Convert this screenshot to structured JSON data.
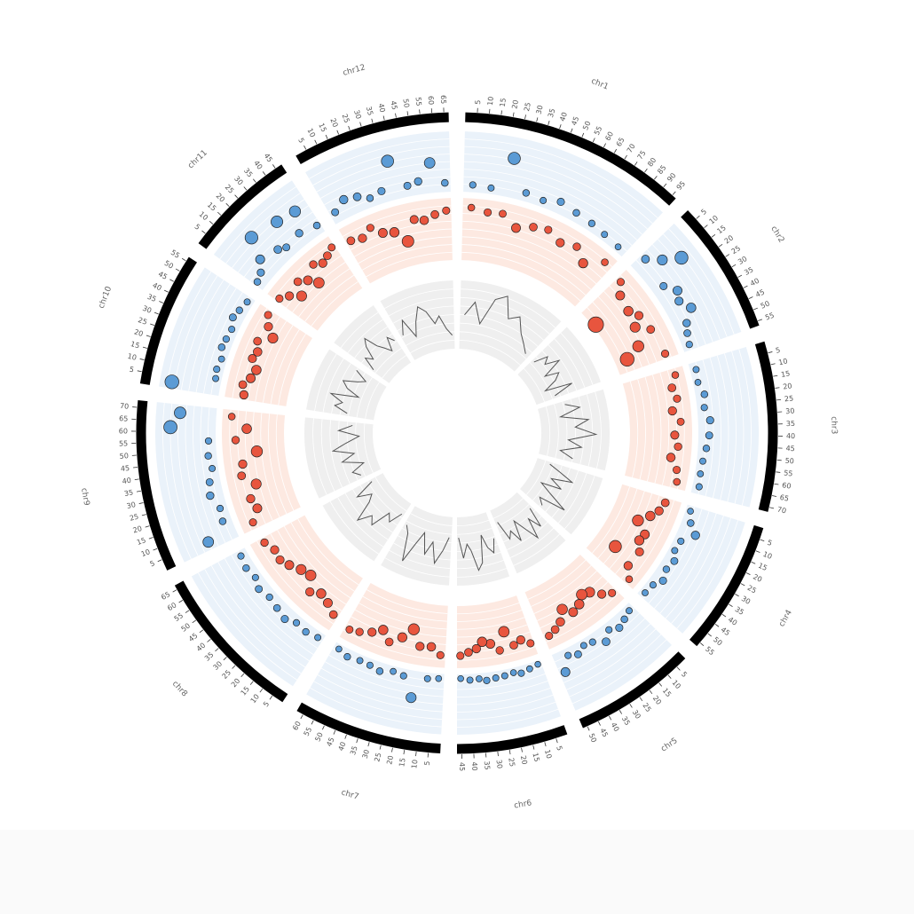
{
  "chart_data": {
    "type": "circos",
    "chromosomes": [
      {
        "name": "chr1",
        "length": 97,
        "ticks": [
          5,
          10,
          15,
          20,
          25,
          30,
          35,
          40,
          45,
          50,
          55,
          60,
          65,
          70,
          75,
          80,
          85,
          90,
          95
        ],
        "positions": [
          5,
          15,
          24,
          34,
          44,
          53,
          63,
          73,
          82,
          92
        ]
      },
      {
        "name": "chr2",
        "length": 57,
        "ticks": [
          5,
          10,
          15,
          20,
          25,
          30,
          35,
          40,
          45,
          50,
          55
        ],
        "positions": [
          3,
          9,
          14,
          20,
          26,
          31,
          37,
          43,
          48,
          54
        ]
      },
      {
        "name": "chr3",
        "length": 72,
        "ticks": [
          5,
          10,
          15,
          20,
          25,
          30,
          35,
          40,
          45,
          50,
          55,
          60,
          65,
          70
        ],
        "positions": [
          4,
          11,
          18,
          25,
          32,
          40,
          47,
          54,
          61,
          68
        ]
      },
      {
        "name": "chr4",
        "length": 57,
        "ticks": [
          5,
          10,
          15,
          20,
          25,
          30,
          35,
          40,
          45,
          50,
          55
        ],
        "positions": [
          3,
          9,
          14,
          20,
          26,
          31,
          37,
          43,
          48,
          54
        ]
      },
      {
        "name": "chr5",
        "length": 52,
        "ticks": [
          5,
          10,
          15,
          20,
          25,
          30,
          35,
          40,
          45,
          50
        ],
        "positions": [
          3,
          8,
          13,
          18,
          23,
          29,
          34,
          39,
          44,
          49
        ]
      },
      {
        "name": "chr6",
        "length": 47,
        "ticks": [
          5,
          10,
          15,
          20,
          25,
          30,
          35,
          40,
          45
        ],
        "positions": [
          2,
          7,
          12,
          16,
          21,
          26,
          31,
          35,
          40,
          45
        ]
      },
      {
        "name": "chr7",
        "length": 63,
        "ticks": [
          5,
          10,
          15,
          20,
          25,
          30,
          35,
          40,
          45,
          50,
          55,
          60
        ],
        "positions": [
          3,
          9,
          16,
          22,
          28,
          35,
          41,
          47,
          54,
          60
        ]
      },
      {
        "name": "chr8",
        "length": 67,
        "ticks": [
          5,
          10,
          15,
          20,
          25,
          30,
          35,
          40,
          45,
          50,
          55,
          60,
          65
        ],
        "positions": [
          3,
          10,
          17,
          23,
          30,
          37,
          44,
          50,
          57,
          64
        ]
      },
      {
        "name": "chr9",
        "length": 73,
        "ticks": [
          5,
          10,
          15,
          20,
          25,
          30,
          35,
          40,
          45,
          50,
          55,
          60,
          65,
          70
        ],
        "positions": [
          4,
          11,
          18,
          26,
          33,
          40,
          47,
          55,
          62,
          69
        ]
      },
      {
        "name": "chr10",
        "length": 57,
        "ticks": [
          5,
          10,
          15,
          20,
          25,
          30,
          35,
          40,
          45,
          50,
          55
        ],
        "positions": [
          3,
          9,
          14,
          20,
          26,
          31,
          37,
          43,
          48,
          54
        ]
      },
      {
        "name": "chr11",
        "length": 48,
        "ticks": [
          5,
          10,
          15,
          20,
          25,
          30,
          35,
          40,
          45
        ],
        "positions": [
          2,
          7,
          12,
          17,
          22,
          26,
          31,
          36,
          41,
          46
        ]
      },
      {
        "name": "chr12",
        "length": 67,
        "ticks": [
          5,
          10,
          15,
          20,
          25,
          30,
          35,
          40,
          45,
          50,
          55,
          60,
          65
        ],
        "positions": [
          3,
          10,
          17,
          23,
          30,
          37,
          44,
          50,
          57,
          64
        ]
      }
    ],
    "tracks": [
      {
        "type": "scatter",
        "color": "#5b9bd5",
        "background": "#eaf2fa",
        "ylim": [
          0,
          10
        ],
        "direction": "out",
        "grid": true,
        "values": [
          [
            1.2,
            1.0,
            6.5,
            1.4,
            1.1,
            2.0,
            1.5,
            1.3,
            1.0,
            0.8
          ],
          [
            2.5,
            4.5,
            7.2,
            2.0,
            3.5,
            2.8,
            4.0,
            2.2,
            1.6,
            1.2
          ],
          [
            1.0,
            0.8,
            1.5,
            1.2,
            2.0,
            1.8,
            1.4,
            1.0,
            0.9,
            1.1
          ],
          [
            0.8,
            1.5,
            3.0,
            1.2,
            1.0,
            1.8,
            1.4,
            2.0,
            1.1,
            0.9
          ],
          [
            1.0,
            1.5,
            2.0,
            1.2,
            2.5,
            1.3,
            1.0,
            1.8,
            1.2,
            3.5
          ],
          [
            0.6,
            0.9,
            1.2,
            0.8,
            1.0,
            1.1,
            1.3,
            0.9,
            1.0,
            0.7
          ],
          [
            0.8,
            1.0,
            4.5,
            1.2,
            0.9,
            1.5,
            1.1,
            1.0,
            1.3,
            0.8
          ],
          [
            1.0,
            1.4,
            1.2,
            2.0,
            1.6,
            1.3,
            1.8,
            1.1,
            1.5,
            1.2
          ],
          [
            5.0,
            1.5,
            1.2,
            2.2,
            1.8,
            1.0,
            1.4,
            1.2,
            7.5,
            6.0
          ],
          [
            8.0,
            1.0,
            1.2,
            0.9,
            1.5,
            1.3,
            1.1,
            1.8,
            1.4,
            1.0
          ],
          [
            1.5,
            2.0,
            3.5,
            7.0,
            2.5,
            1.8,
            6.0,
            2.2,
            5.5,
            1.5
          ],
          [
            1.8,
            3.0,
            2.5,
            1.5,
            2.0,
            6.5,
            1.8,
            2.2,
            5.0,
            1.5
          ]
        ]
      },
      {
        "type": "scatter",
        "color": "#e8553e",
        "background": "#fde9e1",
        "ylim": [
          0,
          10
        ],
        "direction": "in",
        "grid": true,
        "values": [
          [
            1.5,
            2.0,
            1.8,
            3.5,
            2.5,
            2.0,
            3.0,
            2.2,
            3.8,
            1.5
          ],
          [
            2.0,
            3.5,
            9.5,
            4.0,
            3.0,
            4.5,
            2.5,
            5.5,
            8.0,
            2.0
          ],
          [
            1.5,
            2.5,
            2.0,
            3.0,
            1.8,
            2.8,
            2.2,
            3.2,
            2.0,
            1.6
          ],
          [
            2.5,
            3.0,
            4.0,
            5.5,
            3.5,
            3.8,
            2.8,
            6.5,
            3.0,
            1.5
          ],
          [
            2.0,
            3.0,
            4.5,
            5.0,
            4.0,
            3.5,
            4.8,
            3.2,
            2.5,
            2.0
          ],
          [
            2.0,
            3.0,
            2.5,
            5.0,
            2.2,
            3.5,
            4.0,
            3.0,
            2.5,
            2.0
          ],
          [
            2.0,
            3.2,
            3.0,
            5.5,
            3.8,
            2.5,
            4.0,
            3.0,
            2.2,
            1.8
          ],
          [
            2.5,
            3.5,
            4.0,
            3.0,
            5.0,
            4.5,
            3.5,
            2.8,
            3.0,
            2.2
          ],
          [
            2.0,
            3.5,
            3.0,
            4.5,
            2.5,
            3.0,
            5.5,
            2.2,
            4.0,
            1.5
          ],
          [
            3.0,
            2.5,
            3.5,
            4.0,
            2.8,
            3.2,
            2.5,
            4.5,
            3.0,
            2.0
          ],
          [
            2.0,
            3.0,
            4.5,
            2.5,
            3.5,
            5.0,
            2.2,
            3.0,
            2.5,
            1.8
          ],
          [
            2.5,
            3.0,
            2.0,
            3.5,
            4.0,
            6.0,
            2.8,
            3.2,
            2.5,
            2.0
          ]
        ]
      },
      {
        "type": "line",
        "color": "#555555",
        "background": "#efefef",
        "ylim": [
          0,
          10
        ],
        "direction": "out",
        "grid": true,
        "values": [
          [
            5,
            7,
            4,
            8,
            9,
            6,
            7,
            5,
            4,
            3
          ],
          [
            3,
            5,
            4,
            6,
            3,
            5,
            4,
            2,
            6,
            3
          ],
          [
            4,
            6,
            3,
            7,
            5,
            8,
            4,
            6,
            3,
            5
          ],
          [
            2,
            4,
            6,
            3,
            5,
            2,
            4,
            7,
            3,
            4
          ],
          [
            3,
            6,
            4,
            7,
            5,
            3,
            6,
            4,
            5,
            2
          ],
          [
            4,
            6,
            5,
            3,
            7,
            8,
            5,
            4,
            6,
            3
          ],
          [
            3,
            5,
            7,
            4,
            6,
            3,
            5,
            8,
            4,
            3
          ],
          [
            2,
            4,
            3,
            6,
            5,
            7,
            4,
            3,
            5,
            2
          ],
          [
            3,
            4,
            2,
            5,
            3,
            6,
            4,
            2,
            5,
            3
          ],
          [
            4,
            6,
            5,
            7,
            3,
            5,
            6,
            4,
            3,
            5
          ],
          [
            3,
            5,
            4,
            6,
            7,
            5,
            4,
            3,
            5,
            4
          ],
          [
            4,
            6,
            3,
            5,
            7,
            6,
            4,
            5,
            3,
            2
          ]
        ]
      }
    ]
  }
}
